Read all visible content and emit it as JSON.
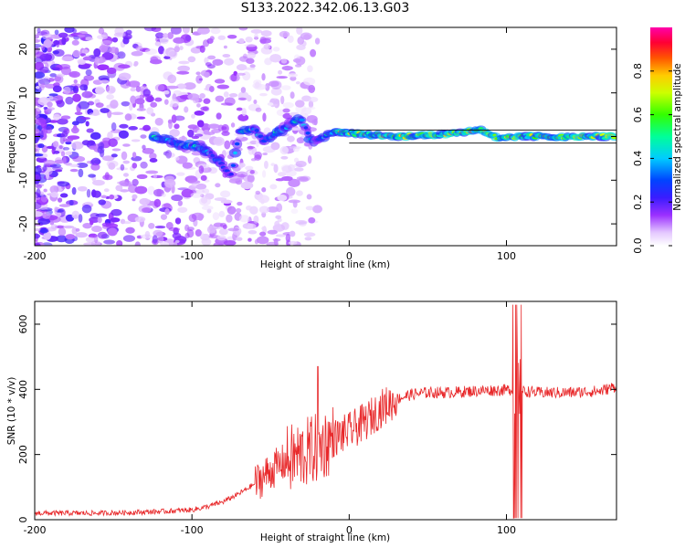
{
  "title": "S133.2022.342.06.13.G03",
  "chart_data": [
    {
      "type": "heatmap",
      "title": "S133.2022.342.06.13.G03",
      "xlabel": "Height of straight line (km)",
      "ylabel": "Frequency (Hz)",
      "xlim": [
        -200,
        170
      ],
      "ylim": [
        -25,
        25
      ],
      "xticks": [
        -200,
        -100,
        0,
        100
      ],
      "yticks": [
        -20,
        -10,
        0,
        10,
        20
      ],
      "colorbar": {
        "label": "Normalized spectral amplitude",
        "range": [
          0,
          1
        ],
        "ticks": [
          0.0,
          0.2,
          0.4,
          0.6,
          0.8
        ],
        "tick_labels": [
          "0.0",
          "0.2",
          "0.4",
          "0.6",
          "0.8"
        ]
      },
      "signal_track": [
        {
          "x": -125,
          "freq": 0.0
        },
        {
          "x": -115,
          "freq": -1.0
        },
        {
          "x": -105,
          "freq": -2.0
        },
        {
          "x": -95,
          "freq": -2.5
        },
        {
          "x": -88,
          "freq": -4.0
        },
        {
          "x": -80,
          "freq": -7.0
        },
        {
          "x": -75,
          "freq": -9.0
        },
        {
          "x": -70,
          "freq": 1.0
        },
        {
          "x": -60,
          "freq": 2.0
        },
        {
          "x": -55,
          "freq": -1.0
        },
        {
          "x": -45,
          "freq": 1.0
        },
        {
          "x": -35,
          "freq": 3.5
        },
        {
          "x": -30,
          "freq": 4.0
        },
        {
          "x": -25,
          "freq": -0.5
        },
        {
          "x": -20,
          "freq": -1.0
        },
        {
          "x": -10,
          "freq": 1.0
        },
        {
          "x": 10,
          "freq": 0.5
        },
        {
          "x": 30,
          "freq": 0.0
        },
        {
          "x": 60,
          "freq": 0.5
        },
        {
          "x": 85,
          "freq": 1.5
        },
        {
          "x": 95,
          "freq": -0.5
        },
        {
          "x": 110,
          "freq": 0.0
        },
        {
          "x": 140,
          "freq": 0.0
        },
        {
          "x": 170,
          "freq": 0.0
        }
      ]
    },
    {
      "type": "line",
      "xlabel": "Height of straight line (km)",
      "ylabel": "SNR (10 * v/v)",
      "xlim": [
        -200,
        170
      ],
      "ylim": [
        0,
        670
      ],
      "xticks": [
        -200,
        -100,
        0,
        100
      ],
      "yticks": [
        0,
        200,
        400,
        600
      ],
      "series": [
        {
          "name": "SNR",
          "color": "#e8282a",
          "x": [
            -200,
            -180,
            -160,
            -140,
            -120,
            -100,
            -90,
            -80,
            -70,
            -60,
            -50,
            -40,
            -30,
            -20,
            -10,
            0,
            10,
            20,
            30,
            40,
            50,
            60,
            70,
            80,
            90,
            100,
            105,
            107,
            110,
            120,
            140,
            160,
            170
          ],
          "values": [
            20,
            20,
            20,
            22,
            25,
            30,
            40,
            55,
            80,
            110,
            150,
            180,
            200,
            220,
            250,
            270,
            300,
            340,
            370,
            385,
            390,
            390,
            392,
            395,
            397,
            398,
            400,
            400,
            395,
            390,
            390,
            395,
            410
          ]
        }
      ]
    }
  ]
}
